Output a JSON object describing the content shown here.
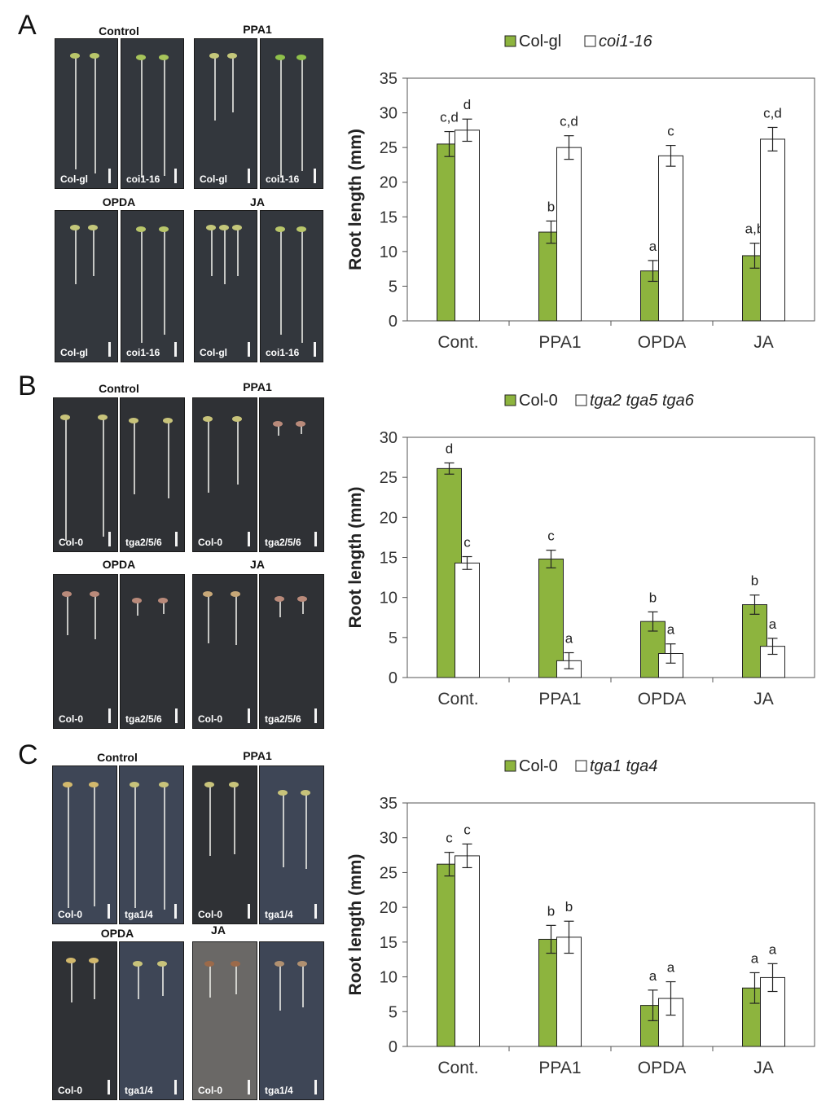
{
  "colors": {
    "wt_fill": "#8db43e",
    "mut_fill": "#ffffff",
    "stroke": "#222222",
    "cat_label": "#333333"
  },
  "panels": [
    {
      "letter": "A",
      "photos": {
        "top_labels": [
          "Control",
          "PPA1"
        ],
        "bottom_labels": [
          "OPDA",
          "JA"
        ],
        "wt_genotype": "Col-gl",
        "mut_genotype": "coi1-16"
      }
    },
    {
      "letter": "B",
      "photos": {
        "top_labels": [
          "Control",
          "PPA1"
        ],
        "bottom_labels": [
          "OPDA",
          "JA"
        ],
        "wt_genotype": "Col-0",
        "mut_genotype": "tga2/5/6"
      }
    },
    {
      "letter": "C",
      "photos": {
        "top_labels": [
          "Control",
          "PPA1"
        ],
        "bottom_labels": [
          "OPDA",
          "JA"
        ],
        "wt_genotype": "Col-0",
        "mut_genotype": "tga1/4"
      }
    }
  ],
  "chart_data": [
    {
      "type": "bar",
      "categories": [
        "Cont.",
        "PPA1",
        "OPDA",
        "JA"
      ],
      "ylabel": "Root length (mm)",
      "ylim": [
        0,
        35
      ],
      "ticks": [
        0,
        5,
        10,
        15,
        20,
        25,
        30,
        35
      ],
      "legend_position": "top",
      "series": [
        {
          "name": "Col-gl",
          "values": [
            25.5,
            12.8,
            7.2,
            9.4
          ],
          "errors": [
            1.8,
            1.6,
            1.5,
            1.8
          ],
          "letters": [
            "c,d",
            "b",
            "a",
            "a,b"
          ]
        },
        {
          "name": "coi1-16",
          "values": [
            27.5,
            25.0,
            23.8,
            26.2
          ],
          "errors": [
            1.6,
            1.7,
            1.5,
            1.7
          ],
          "letters": [
            "d",
            "c,d",
            "c",
            "c,d"
          ]
        }
      ]
    },
    {
      "type": "bar",
      "categories": [
        "Cont.",
        "PPA1",
        "OPDA",
        "JA"
      ],
      "ylabel": "Root length (mm)",
      "ylim": [
        0,
        30
      ],
      "ticks": [
        0,
        5,
        10,
        15,
        20,
        25,
        30
      ],
      "legend_position": "top",
      "series": [
        {
          "name": "Col-0",
          "values": [
            26.1,
            14.8,
            7.0,
            9.1
          ],
          "errors": [
            0.7,
            1.1,
            1.2,
            1.2
          ],
          "letters": [
            "d",
            "c",
            "b",
            "b"
          ]
        },
        {
          "name": "tga2 tga5 tga6",
          "values": [
            14.3,
            2.1,
            3.0,
            3.9
          ],
          "errors": [
            0.8,
            1.0,
            1.2,
            1.0
          ],
          "letters": [
            "c",
            "a",
            "a",
            "a"
          ]
        }
      ]
    },
    {
      "type": "bar",
      "categories": [
        "Cont.",
        "PPA1",
        "OPDA",
        "JA"
      ],
      "ylabel": "Root length (mm)",
      "ylim": [
        0,
        35
      ],
      "ticks": [
        0,
        5,
        10,
        15,
        20,
        25,
        30,
        35
      ],
      "legend_position": "top",
      "series": [
        {
          "name": "Col-0",
          "values": [
            26.2,
            15.4,
            5.9,
            8.4
          ],
          "errors": [
            1.7,
            2.0,
            2.2,
            2.2
          ],
          "letters": [
            "c",
            "b",
            "a",
            "a"
          ]
        },
        {
          "name": "tga1 tga4",
          "values": [
            27.4,
            15.7,
            6.9,
            9.9
          ],
          "errors": [
            1.7,
            2.3,
            2.4,
            2.0
          ],
          "letters": [
            "c",
            "b",
            "a",
            "a"
          ]
        }
      ]
    }
  ]
}
